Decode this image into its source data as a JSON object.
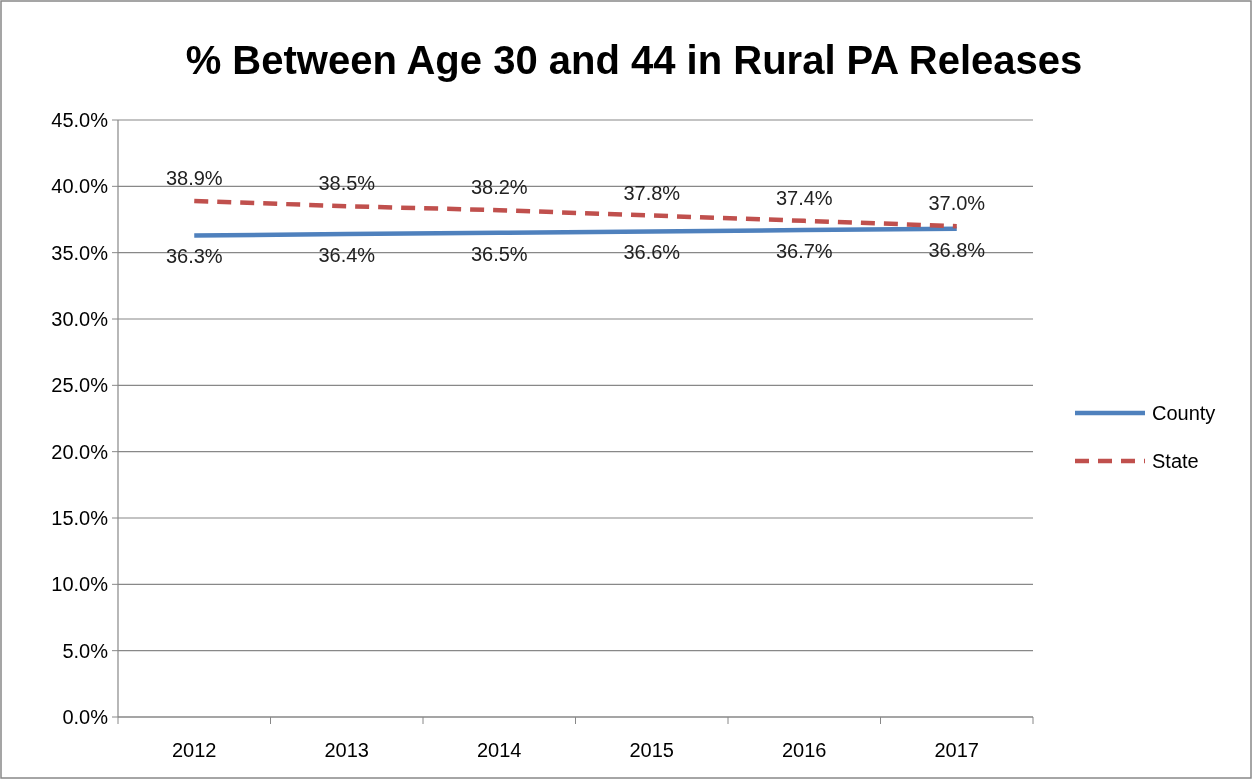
{
  "chart_data": {
    "type": "line",
    "title": "% Between Age 30 and 44 in Rural PA Releases",
    "categories": [
      "2012",
      "2013",
      "2014",
      "2015",
      "2016",
      "2017"
    ],
    "series": [
      {
        "name": "County",
        "color": "#4f81bd",
        "line_style": "solid",
        "values": [
          36.3,
          36.4,
          36.5,
          36.6,
          36.7,
          36.8
        ],
        "value_labels": [
          "36.3%",
          "36.4%",
          "36.5%",
          "36.6%",
          "36.7%",
          "36.8%"
        ]
      },
      {
        "name": "State",
        "color": "#c0504d",
        "line_style": "dashed",
        "values": [
          38.9,
          38.5,
          38.2,
          37.8,
          37.4,
          37.0
        ],
        "value_labels": [
          "38.9%",
          "38.5%",
          "38.2%",
          "37.8%",
          "37.4%",
          "37.0%"
        ]
      }
    ],
    "ylim": [
      0,
      45
    ],
    "yticks": [
      {
        "value": 0,
        "label": "0.0%"
      },
      {
        "value": 5,
        "label": "5.0%"
      },
      {
        "value": 10,
        "label": "10.0%"
      },
      {
        "value": 15,
        "label": "15.0%"
      },
      {
        "value": 20,
        "label": "20.0%"
      },
      {
        "value": 25,
        "label": "25.0%"
      },
      {
        "value": 30,
        "label": "30.0%"
      },
      {
        "value": 35,
        "label": "35.0%"
      },
      {
        "value": 40,
        "label": "40.0%"
      },
      {
        "value": 45,
        "label": "45.0%"
      }
    ],
    "grid": "y",
    "legend": "right"
  }
}
